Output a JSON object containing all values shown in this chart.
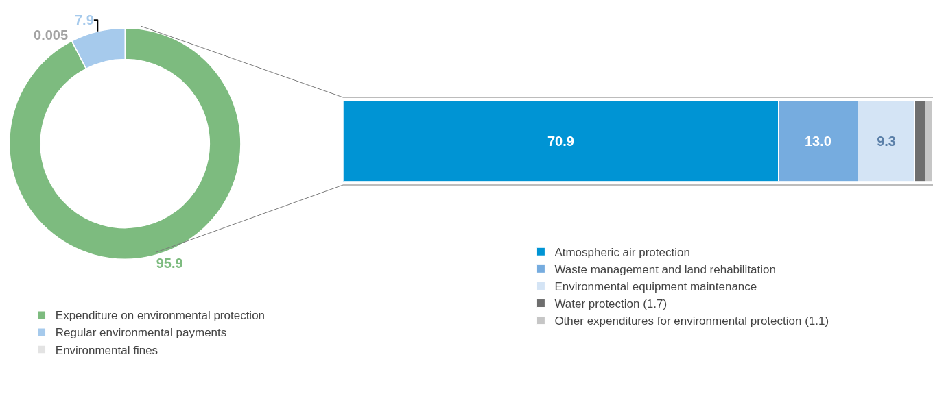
{
  "chart_data": [
    {
      "type": "donut",
      "categories": [
        "Expenditure on environmental protection",
        "Regular environmental payments",
        "Environmental fines"
      ],
      "values": [
        95.9,
        7.9,
        0.005
      ],
      "colors": [
        "#7dbb7f",
        "#a6caec",
        "#e3e3e3"
      ],
      "data_labels": true,
      "legend": "bottom"
    },
    {
      "type": "bar",
      "orientation": "horizontal",
      "stacked": true,
      "categories": [
        null
      ],
      "xlim": [
        0,
        96
      ],
      "legend": "bottom",
      "series": [
        {
          "name": "Atmospheric air protection",
          "color": "#0094d4",
          "values": [
            70.9
          ],
          "value_labels": [
            "70.9"
          ]
        },
        {
          "name": "Waste management and land rehabilitation",
          "color": "#76acdf",
          "values": [
            13.0
          ],
          "value_labels": [
            "13.0"
          ]
        },
        {
          "name": "Environmental equipment maintenance",
          "color": "#d4e4f5",
          "values": [
            9.3
          ],
          "value_labels": [
            "9.3"
          ]
        },
        {
          "name": "Water protection (1.7)",
          "color": "#6e6e6e",
          "values": [
            1.7
          ],
          "value_labels": [
            null
          ]
        },
        {
          "name": "Other expenditures for environmental protection (1.1)",
          "color": "#c6c6c6",
          "values": [
            1.1
          ],
          "value_labels": [
            null
          ]
        }
      ]
    }
  ]
}
